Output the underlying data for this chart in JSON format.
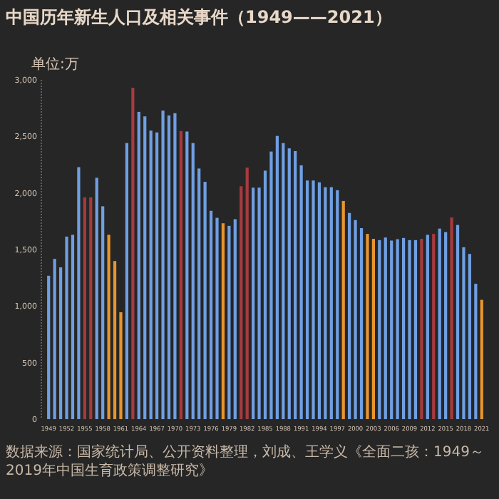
{
  "chart_data": {
    "type": "bar",
    "title": "中国历年新生人口及相关事件（1949——2021）",
    "ylabel": "单位:万",
    "categories": [
      "1949",
      null,
      null,
      "1952",
      null,
      null,
      "1955",
      null,
      null,
      "1958",
      null,
      null,
      "1961",
      null,
      null,
      "1964",
      null,
      null,
      "1967",
      null,
      null,
      "1970",
      null,
      null,
      "1973",
      null,
      null,
      "1976",
      null,
      null,
      "1979",
      null,
      null,
      "1982",
      null,
      null,
      "1985",
      null,
      null,
      "1988",
      null,
      null,
      "1991",
      null,
      null,
      "1994",
      null,
      null,
      "1997",
      null,
      null,
      "2000",
      null,
      null,
      "2003",
      null,
      null,
      "2006",
      null,
      null,
      "2009",
      null,
      null,
      "2012",
      null,
      null,
      "2015",
      null,
      null,
      "2018",
      null,
      null,
      "2021"
    ],
    "values": [
      1268,
      1417,
      1342,
      1614,
      1630,
      2228,
      1961,
      1961,
      2134,
      1882,
      1630,
      1398,
      945,
      2441,
      2929,
      2717,
      2677,
      2551,
      2535,
      2728,
      2685,
      2705,
      2547,
      2543,
      2441,
      2216,
      2098,
      1842,
      1780,
      1732,
      1709,
      1768,
      2059,
      2224,
      2047,
      2047,
      2197,
      2366,
      2504,
      2441,
      2394,
      2370,
      2244,
      2110,
      2110,
      2094,
      2051,
      2051,
      2024,
      1929,
      1823,
      1760,
      1689,
      1638,
      1594,
      1583,
      1606,
      1579,
      1591,
      1602,
      1583,
      1583,
      1594,
      1630,
      1638,
      1685,
      1654,
      1783,
      1717,
      1520,
      1461,
      1197,
      1055
    ],
    "colors": [
      "#6f9fe3",
      "#6f9fe3",
      "#6f9fe3",
      "#6f9fe3",
      "#6f9fe3",
      "#6f9fe3",
      "#a83a3e",
      "#a83a3e",
      "#6f9fe3",
      "#6f9fe3",
      "#e8952e",
      "#e8952e",
      "#e8952e",
      "#6f9fe3",
      "#a83a3e",
      "#6f9fe3",
      "#6f9fe3",
      "#6f9fe3",
      "#6f9fe3",
      "#6f9fe3",
      "#6f9fe3",
      "#6f9fe3",
      "#a83a3e",
      "#6f9fe3",
      "#6f9fe3",
      "#6f9fe3",
      "#6f9fe3",
      "#6f9fe3",
      "#6f9fe3",
      "#e8952e",
      "#6f9fe3",
      "#6f9fe3",
      "#a83a3e",
      "#a83a3e",
      "#6f9fe3",
      "#6f9fe3",
      "#6f9fe3",
      "#6f9fe3",
      "#6f9fe3",
      "#6f9fe3",
      "#6f9fe3",
      "#6f9fe3",
      "#6f9fe3",
      "#6f9fe3",
      "#6f9fe3",
      "#6f9fe3",
      "#6f9fe3",
      "#6f9fe3",
      "#6f9fe3",
      "#e8952e",
      "#6f9fe3",
      "#6f9fe3",
      "#6f9fe3",
      "#e8952e",
      "#e8952e",
      "#6f9fe3",
      "#6f9fe3",
      "#6f9fe3",
      "#6f9fe3",
      "#6f9fe3",
      "#6f9fe3",
      "#6f9fe3",
      "#a83a3e",
      "#6f9fe3",
      "#a83a3e",
      "#6f9fe3",
      "#6f9fe3",
      "#a83a3e",
      "#6f9fe3",
      "#6f9fe3",
      "#6f9fe3",
      "#6f9fe3",
      "#e8952e"
    ],
    "ylim": [
      0,
      3000
    ],
    "yticks": [
      0,
      {
        "value": 500,
        "label": "500"
      },
      {
        "value": 1000,
        "label": "1,000"
      },
      {
        "value": 1500,
        "label": "1,500"
      },
      {
        "value": 2000,
        "label": "2,000"
      },
      {
        "value": 2500,
        "label": "2,500"
      },
      {
        "value": 3000,
        "label": "3,000"
      }
    ],
    "annotations": [
      "数据来源：国家统计局、公开资料整理，刘成、王学义《全面二孩：1949～2019年中国生育政策调整研究》"
    ]
  }
}
